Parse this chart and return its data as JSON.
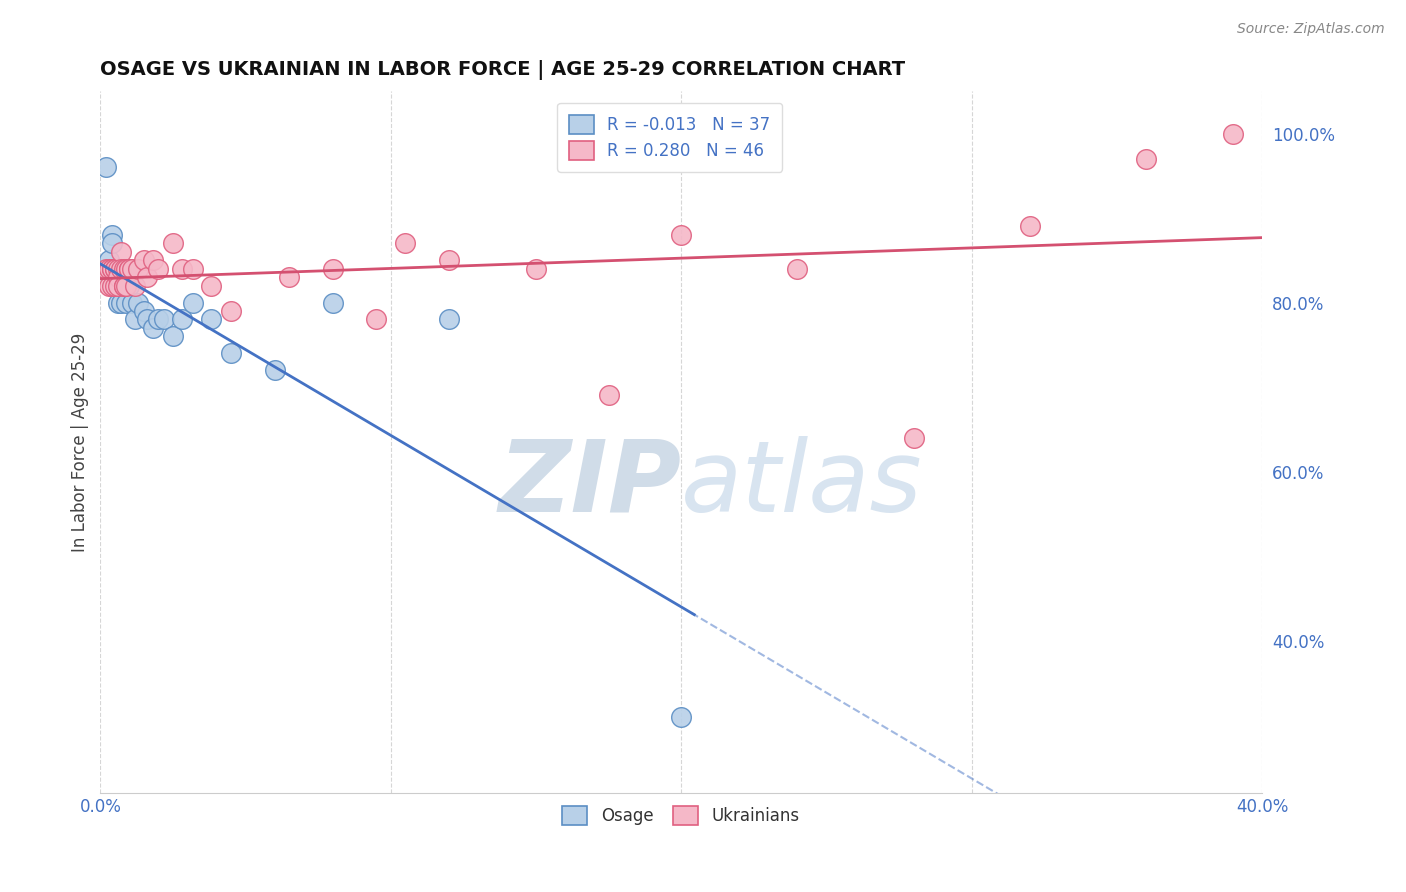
{
  "title": "OSAGE VS UKRAINIAN IN LABOR FORCE | AGE 25-29 CORRELATION CHART",
  "source_text": "Source: ZipAtlas.com",
  "ylabel": "In Labor Force | Age 25-29",
  "xlim": [
    0.0,
    0.4
  ],
  "ylim": [
    0.22,
    1.05
  ],
  "ytick_positions": [
    0.4,
    0.6,
    0.8,
    1.0
  ],
  "ytick_labels": [
    "40.0%",
    "60.0%",
    "80.0%",
    "100.0%"
  ],
  "xtick_vals": [
    0.0,
    0.1,
    0.2,
    0.3,
    0.4
  ],
  "xtick_labels": [
    "0.0%",
    "",
    "",
    "",
    "40.0%"
  ],
  "osage_R": -0.013,
  "osage_N": 37,
  "ukrainian_R": 0.28,
  "ukrainian_N": 46,
  "osage_face_color": "#b8d0e8",
  "ukrainian_face_color": "#f5b8c8",
  "osage_edge_color": "#5b8ec4",
  "ukrainian_edge_color": "#e06080",
  "osage_line_color": "#4472c4",
  "ukrainian_line_color": "#d45070",
  "watermark_color": "#d0dce8",
  "background_color": "#ffffff",
  "grid_color": "#cccccc",
  "axis_label_color": "#4472c4",
  "title_color": "#111111",
  "osage_x": [
    0.002,
    0.003,
    0.003,
    0.004,
    0.004,
    0.005,
    0.005,
    0.005,
    0.006,
    0.006,
    0.006,
    0.007,
    0.007,
    0.007,
    0.008,
    0.008,
    0.009,
    0.009,
    0.01,
    0.01,
    0.011,
    0.012,
    0.013,
    0.015,
    0.016,
    0.018,
    0.02,
    0.022,
    0.025,
    0.028,
    0.032,
    0.038,
    0.045,
    0.06,
    0.08,
    0.12,
    0.2
  ],
  "osage_y": [
    0.96,
    0.84,
    0.85,
    0.88,
    0.87,
    0.84,
    0.83,
    0.82,
    0.84,
    0.82,
    0.8,
    0.84,
    0.82,
    0.8,
    0.84,
    0.82,
    0.83,
    0.8,
    0.82,
    0.84,
    0.8,
    0.78,
    0.8,
    0.79,
    0.78,
    0.77,
    0.78,
    0.78,
    0.76,
    0.78,
    0.8,
    0.78,
    0.74,
    0.72,
    0.8,
    0.78,
    0.31
  ],
  "ukrainian_x": [
    0.002,
    0.003,
    0.003,
    0.004,
    0.004,
    0.004,
    0.005,
    0.005,
    0.005,
    0.006,
    0.006,
    0.006,
    0.007,
    0.007,
    0.008,
    0.008,
    0.008,
    0.009,
    0.009,
    0.01,
    0.01,
    0.011,
    0.012,
    0.013,
    0.015,
    0.016,
    0.018,
    0.02,
    0.025,
    0.028,
    0.032,
    0.038,
    0.045,
    0.065,
    0.08,
    0.095,
    0.105,
    0.12,
    0.15,
    0.175,
    0.2,
    0.24,
    0.28,
    0.32,
    0.36,
    0.39
  ],
  "ukrainian_y": [
    0.84,
    0.84,
    0.82,
    0.84,
    0.84,
    0.82,
    0.84,
    0.84,
    0.82,
    0.84,
    0.83,
    0.82,
    0.86,
    0.84,
    0.84,
    0.82,
    0.82,
    0.84,
    0.82,
    0.84,
    0.84,
    0.84,
    0.82,
    0.84,
    0.85,
    0.83,
    0.85,
    0.84,
    0.87,
    0.84,
    0.84,
    0.82,
    0.79,
    0.83,
    0.84,
    0.78,
    0.87,
    0.85,
    0.84,
    0.69,
    0.88,
    0.84,
    0.64,
    0.89,
    0.97,
    1.0
  ]
}
